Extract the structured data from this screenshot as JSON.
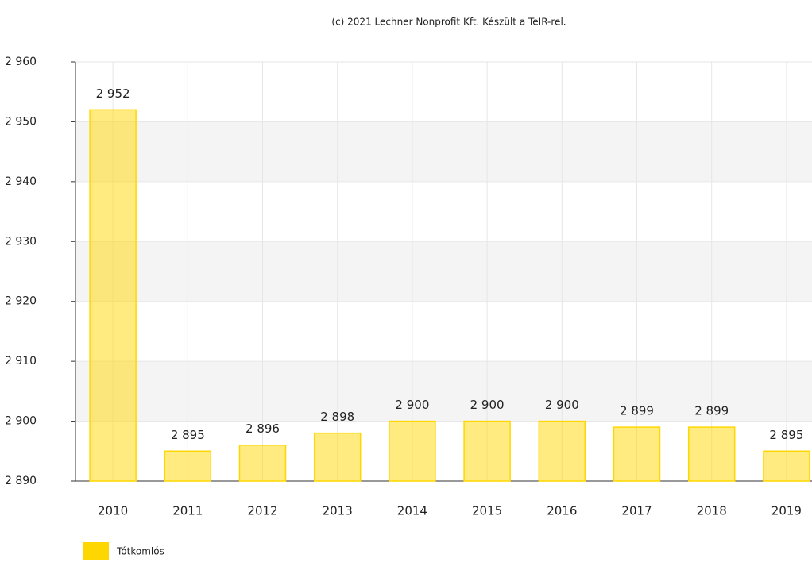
{
  "chart_data": {
    "type": "bar",
    "title": "(c) 2021 Lechner Nonprofit Kft. Készült a TeIR-rel.",
    "categories": [
      "2010",
      "2011",
      "2012",
      "2013",
      "2014",
      "2015",
      "2016",
      "2017",
      "2018",
      "2019"
    ],
    "series": [
      {
        "name": "Tótkomlós",
        "color": "#ffd700",
        "values": [
          2952,
          2895,
          2896,
          2898,
          2900,
          2900,
          2900,
          2899,
          2899,
          2895
        ],
        "value_labels": [
          "2 952",
          "2 895",
          "2 896",
          "2 898",
          "2 900",
          "2 900",
          "2 900",
          "2 899",
          "2 899",
          "2 895"
        ]
      }
    ],
    "ylim": [
      2890,
      2960
    ],
    "yticks": [
      {
        "value": 2890,
        "label": "2 890"
      },
      {
        "value": 2900,
        "label": "2 900"
      },
      {
        "value": 2910,
        "label": "2 910"
      },
      {
        "value": 2920,
        "label": "2 920"
      },
      {
        "value": 2930,
        "label": "2 930"
      },
      {
        "value": 2940,
        "label": "2 940"
      },
      {
        "value": 2950,
        "label": "2 950"
      },
      {
        "value": 2960,
        "label": "2 960"
      }
    ],
    "grid": true,
    "legend": "bottom-left"
  }
}
